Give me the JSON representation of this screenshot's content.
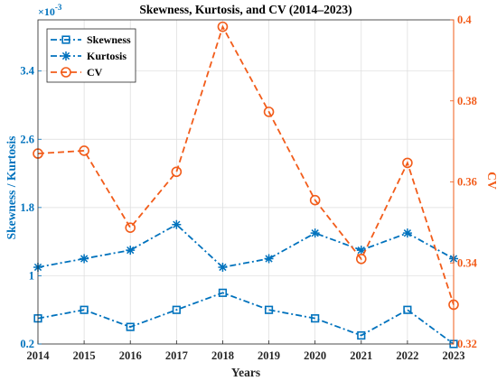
{
  "chart_data": {
    "type": "line",
    "title": "Skewness, Kurtosis, and CV (2014–2023)",
    "xlabel": "Years",
    "ylabel_left": "Skewness / Kurtosis",
    "ylabel_right": "CV",
    "left_exponent_base": "×10",
    "left_exponent_power": "-3",
    "x": [
      2014,
      2015,
      2016,
      2017,
      2018,
      2019,
      2020,
      2021,
      2022,
      2023
    ],
    "x_tick_labels": [
      "2014",
      "2015",
      "2016",
      "2017",
      "2018",
      "2019",
      "2020",
      "2021",
      "2022",
      "2023"
    ],
    "ylim_left": [
      0.2,
      4.0
    ],
    "yticks_left": [
      "0.2",
      "1",
      "1.8",
      "2.6",
      "3.4"
    ],
    "yticks_left_values": [
      0.2,
      1.0,
      1.8,
      2.6,
      3.4
    ],
    "ylim_right": [
      0.32,
      0.4
    ],
    "yticks_right": [
      "0.32",
      "0.34",
      "0.36",
      "0.38",
      "0.4"
    ],
    "yticks_right_values": [
      0.32,
      0.34,
      0.36,
      0.38,
      0.4
    ],
    "grid": true,
    "legend_position": "top-left",
    "series": [
      {
        "name": "Skewness",
        "axis": "left",
        "color": "#0072BD",
        "marker": "square",
        "linestyle": "dashdot",
        "values": [
          0.5,
          0.6,
          0.4,
          0.6,
          0.8,
          0.6,
          0.5,
          0.3,
          0.6,
          0.2
        ]
      },
      {
        "name": "Kurtosis",
        "axis": "left",
        "color": "#0072BD",
        "marker": "asterisk",
        "linestyle": "dashdot",
        "values": [
          1.1,
          1.2,
          1.3,
          1.6,
          1.1,
          1.2,
          1.5,
          1.3,
          1.5,
          1.2
        ]
      },
      {
        "name": "CV",
        "axis": "right",
        "color": "#F25C1A",
        "marker": "circle",
        "linestyle": "dashed",
        "values": [
          0.367,
          0.3677,
          0.3487,
          0.3625,
          0.3983,
          0.3773,
          0.3555,
          0.341,
          0.3647,
          0.3297
        ]
      }
    ]
  }
}
